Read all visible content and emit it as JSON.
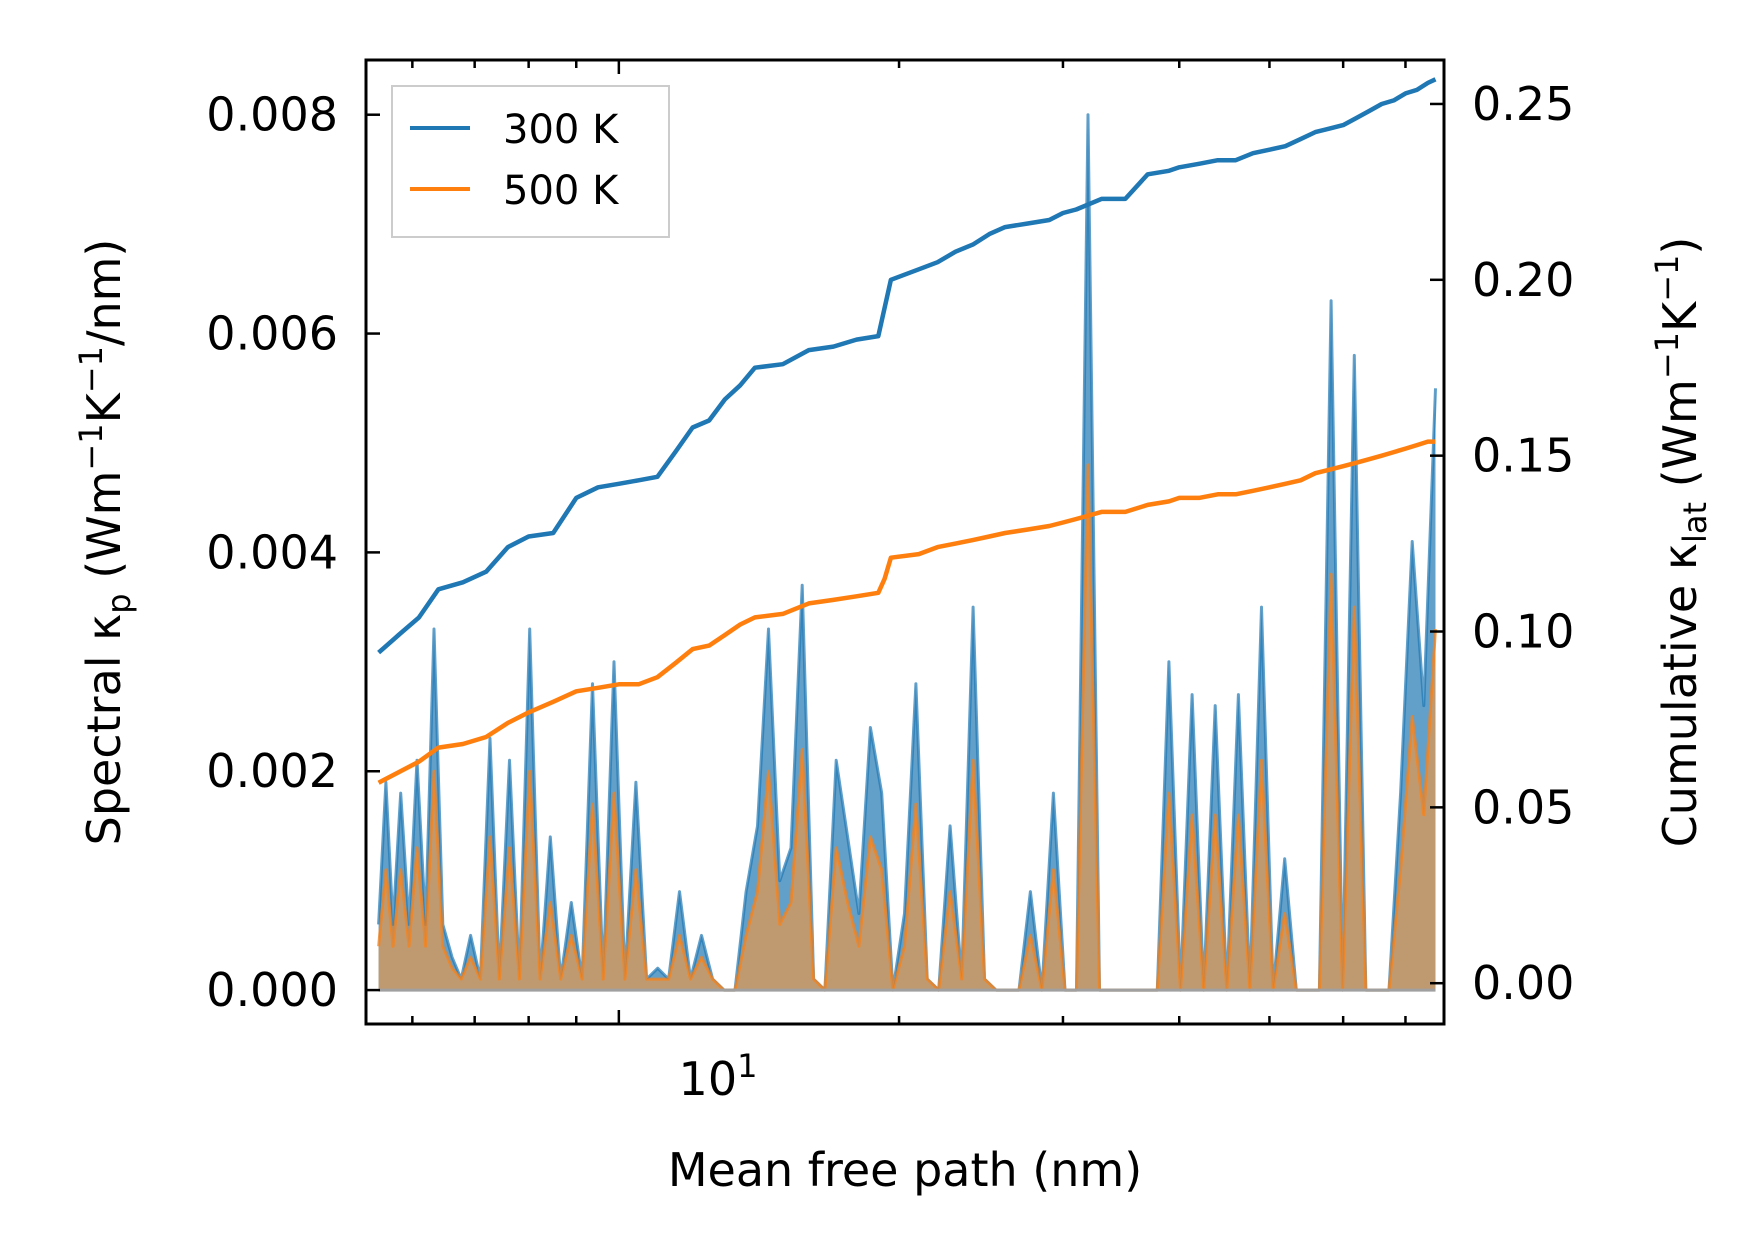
{
  "chart_data": {
    "type": "line",
    "xlabel": "Mean free path (nm)",
    "xscale": "log",
    "xlim": [
      5.35,
      77
    ],
    "x_tick_label": {
      "base": "10",
      "exp": "1",
      "value": 10
    },
    "ylabel_left": {
      "prefix": "Spectral κ",
      "sub": "p",
      "units": " (Wm",
      "sup1": "−1",
      "mid": "K",
      "sup2": "−1",
      "suffix": "/nm)"
    },
    "ylabel_right": {
      "prefix": "Cumulative κ",
      "sub": "lat",
      "units": " (Wm",
      "sup1": "−1",
      "mid": "K",
      "sup2": "−1",
      "suffix": ")"
    },
    "ylim_left": [
      -0.00031,
      0.0085
    ],
    "ylim_right": [
      -0.0116,
      0.2625
    ],
    "yticks_left": [
      "0.000",
      "0.002",
      "0.004",
      "0.006",
      "0.008"
    ],
    "yticks_right": [
      "0.00",
      "0.05",
      "0.10",
      "0.15",
      "0.20",
      "0.25"
    ],
    "legend": {
      "position": "upper-left",
      "entries": [
        "300 K",
        "500 K"
      ]
    },
    "colors": {
      "300K": "#1f77b4",
      "500K": "#ff7f0e",
      "fill500": "#c49a6c"
    },
    "series_spectral_300K": {
      "x": [
        5.52,
        5.62,
        5.72,
        5.83,
        5.95,
        6.07,
        6.2,
        6.33,
        6.47,
        6.62,
        6.77,
        6.93,
        7.1,
        7.27,
        7.44,
        7.63,
        7.82,
        8.02,
        8.23,
        8.44,
        8.66,
        8.89,
        9.13,
        9.37,
        9.62,
        9.88,
        10.15,
        10.43,
        10.71,
        11.01,
        11.31,
        11.62,
        11.94,
        12.27,
        12.61,
        12.97,
        13.33,
        13.7,
        14.09,
        14.48,
        14.89,
        15.31,
        15.74,
        16.19,
        16.65,
        17.12,
        17.61,
        18.11,
        18.63,
        19.16,
        19.7,
        20.27,
        20.85,
        21.44,
        22.06,
        22.69,
        23.35,
        24.02,
        24.71,
        25.42,
        26.15,
        26.91,
        27.68,
        28.48,
        29.3,
        30.15,
        31.02,
        31.92,
        32.84,
        33.79,
        34.77,
        35.78,
        36.82,
        37.89,
        38.99,
        40.12,
        41.29,
        42.49,
        43.72,
        44.99,
        46.3,
        47.64,
        49.03,
        50.45,
        51.92,
        53.43,
        54.98,
        56.58,
        58.23,
        59.92,
        61.67,
        63.46,
        65.31,
        67.21,
        69.17,
        71.18,
        73.25,
        75.4
      ],
      "y": [
        0.0006,
        0.0019,
        0.0006,
        0.0018,
        0.0006,
        0.0021,
        0.0006,
        0.0033,
        0.0006,
        0.0003,
        0.0001,
        0.0005,
        0.0001,
        0.0023,
        0.0001,
        0.0021,
        0.0001,
        0.0033,
        0.0001,
        0.0014,
        0.0001,
        0.0008,
        0.0001,
        0.0028,
        0.0001,
        0.003,
        0.0001,
        0.0019,
        0.0001,
        0.0002,
        0.0001,
        0.0009,
        0.0001,
        0.0005,
        0.0001,
        0.0,
        0.0,
        0.0009,
        0.0015,
        0.0033,
        0.001,
        0.0013,
        0.0037,
        0.0001,
        0.0,
        0.0021,
        0.0014,
        0.0007,
        0.0024,
        0.0018,
        0.0,
        0.0007,
        0.0028,
        0.0001,
        0.0,
        0.0015,
        0.0001,
        0.0035,
        0.0001,
        0.0,
        0.0,
        0.0,
        0.0009,
        0.0,
        0.0018,
        0.0,
        0.0,
        0.008,
        0.0,
        0.0,
        0.0,
        0.0,
        0.0,
        0.0,
        0.003,
        0.0,
        0.0027,
        0.0,
        0.0026,
        0.0,
        0.0027,
        0.0,
        0.0035,
        0.0,
        0.0012,
        0.0,
        0.0,
        0.0,
        0.0063,
        0.0,
        0.0058,
        0.0,
        0.0,
        0.0,
        0.0018,
        0.0041,
        0.0026,
        0.0055
      ]
    },
    "series_spectral_500K": {
      "x": [
        5.52,
        5.62,
        5.72,
        5.83,
        5.95,
        6.07,
        6.2,
        6.33,
        6.47,
        6.62,
        6.77,
        6.93,
        7.1,
        7.27,
        7.44,
        7.63,
        7.82,
        8.02,
        8.23,
        8.44,
        8.66,
        8.89,
        9.13,
        9.37,
        9.62,
        9.88,
        10.15,
        10.43,
        10.71,
        11.01,
        11.31,
        11.62,
        11.94,
        12.27,
        12.61,
        12.97,
        13.33,
        13.7,
        14.09,
        14.48,
        14.89,
        15.31,
        15.74,
        16.19,
        16.65,
        17.12,
        17.61,
        18.11,
        18.63,
        19.16,
        19.7,
        20.27,
        20.85,
        21.44,
        22.06,
        22.69,
        23.35,
        24.02,
        24.71,
        25.42,
        26.15,
        26.91,
        27.68,
        28.48,
        29.3,
        30.15,
        31.02,
        31.92,
        32.84,
        33.79,
        34.77,
        35.78,
        36.82,
        37.89,
        38.99,
        40.12,
        41.29,
        42.49,
        43.72,
        44.99,
        46.3,
        47.64,
        49.03,
        50.45,
        51.92,
        53.43,
        54.98,
        56.58,
        58.23,
        59.92,
        61.67,
        63.46,
        65.31,
        67.21,
        69.17,
        71.18,
        73.25,
        75.4
      ],
      "y": [
        0.0004,
        0.0011,
        0.0004,
        0.0011,
        0.0004,
        0.0013,
        0.0004,
        0.002,
        0.0004,
        0.0002,
        0.0001,
        0.0003,
        0.0001,
        0.0014,
        0.0001,
        0.0013,
        0.0001,
        0.002,
        0.0001,
        0.0008,
        0.0001,
        0.0005,
        0.0001,
        0.0017,
        0.0001,
        0.0018,
        0.0001,
        0.0011,
        0.0001,
        0.0001,
        0.0001,
        0.0005,
        0.0001,
        0.0003,
        0.0001,
        0.0,
        0.0,
        0.0005,
        0.0009,
        0.002,
        0.0006,
        0.0008,
        0.0022,
        0.0001,
        0.0,
        0.0013,
        0.0008,
        0.0004,
        0.0014,
        0.0011,
        0.0,
        0.0004,
        0.0017,
        0.0001,
        0.0,
        0.0009,
        0.0001,
        0.0021,
        0.0001,
        0.0,
        0.0,
        0.0,
        0.0005,
        0.0,
        0.0011,
        0.0,
        0.0,
        0.0048,
        0.0,
        0.0,
        0.0,
        0.0,
        0.0,
        0.0,
        0.0018,
        0.0,
        0.0016,
        0.0,
        0.0016,
        0.0,
        0.0016,
        0.0,
        0.0021,
        0.0,
        0.0007,
        0.0,
        0.0,
        0.0,
        0.0038,
        0.0,
        0.0035,
        0.0,
        0.0,
        0.0,
        0.0011,
        0.0025,
        0.0016,
        0.0033
      ]
    },
    "series_cumulative_300K": {
      "x": [
        5.52,
        5.8,
        6.1,
        6.4,
        6.8,
        7.2,
        7.6,
        8.0,
        8.5,
        9.0,
        9.5,
        10.0,
        10.5,
        11.0,
        11.5,
        12.0,
        12.5,
        13.0,
        13.5,
        14.0,
        15.0,
        16.0,
        17.0,
        18.0,
        19.0,
        19.3,
        19.6,
        21.0,
        22.0,
        23.0,
        24.0,
        25.0,
        26.0,
        27.5,
        29.0,
        30.0,
        31.0,
        33.0,
        35.0,
        37.0,
        39.0,
        40.0,
        42.0,
        44.0,
        46.0,
        48.0,
        50.0,
        52.0,
        54.0,
        56.0,
        58.0,
        60.0,
        62.0,
        64.0,
        66.0,
        68.0,
        70.0,
        72.0,
        74.0,
        75.4
      ],
      "y": [
        0.094,
        0.099,
        0.104,
        0.112,
        0.114,
        0.117,
        0.124,
        0.127,
        0.128,
        0.138,
        0.141,
        0.142,
        0.143,
        0.144,
        0.151,
        0.158,
        0.16,
        0.166,
        0.17,
        0.175,
        0.176,
        0.18,
        0.181,
        0.183,
        0.184,
        0.192,
        0.2,
        0.203,
        0.205,
        0.208,
        0.21,
        0.213,
        0.215,
        0.216,
        0.217,
        0.219,
        0.22,
        0.223,
        0.223,
        0.23,
        0.231,
        0.232,
        0.233,
        0.234,
        0.234,
        0.236,
        0.237,
        0.238,
        0.24,
        0.242,
        0.243,
        0.244,
        0.246,
        0.248,
        0.25,
        0.251,
        0.253,
        0.254,
        0.256,
        0.257
      ]
    },
    "series_cumulative_500K": {
      "x": [
        5.52,
        5.8,
        6.1,
        6.4,
        6.8,
        7.2,
        7.6,
        8.0,
        8.5,
        9.0,
        9.5,
        10.0,
        10.5,
        11.0,
        11.5,
        12.0,
        12.5,
        13.0,
        13.5,
        14.0,
        15.0,
        16.0,
        17.0,
        18.0,
        19.0,
        19.3,
        19.6,
        21.0,
        22.0,
        23.0,
        24.0,
        25.0,
        26.0,
        27.5,
        29.0,
        30.0,
        31.0,
        33.0,
        35.0,
        37.0,
        39.0,
        40.0,
        42.0,
        44.0,
        46.0,
        48.0,
        50.0,
        52.0,
        54.0,
        56.0,
        58.0,
        60.0,
        62.0,
        64.0,
        66.0,
        68.0,
        70.0,
        72.0,
        74.0,
        75.4
      ],
      "y": [
        0.057,
        0.06,
        0.063,
        0.067,
        0.068,
        0.07,
        0.074,
        0.077,
        0.08,
        0.083,
        0.084,
        0.085,
        0.085,
        0.087,
        0.091,
        0.095,
        0.096,
        0.099,
        0.102,
        0.104,
        0.105,
        0.108,
        0.109,
        0.11,
        0.111,
        0.115,
        0.121,
        0.122,
        0.124,
        0.125,
        0.126,
        0.127,
        0.128,
        0.129,
        0.13,
        0.131,
        0.132,
        0.134,
        0.134,
        0.136,
        0.137,
        0.138,
        0.138,
        0.139,
        0.139,
        0.14,
        0.141,
        0.142,
        0.143,
        0.145,
        0.146,
        0.147,
        0.148,
        0.149,
        0.15,
        0.151,
        0.152,
        0.153,
        0.154,
        0.154
      ]
    }
  }
}
